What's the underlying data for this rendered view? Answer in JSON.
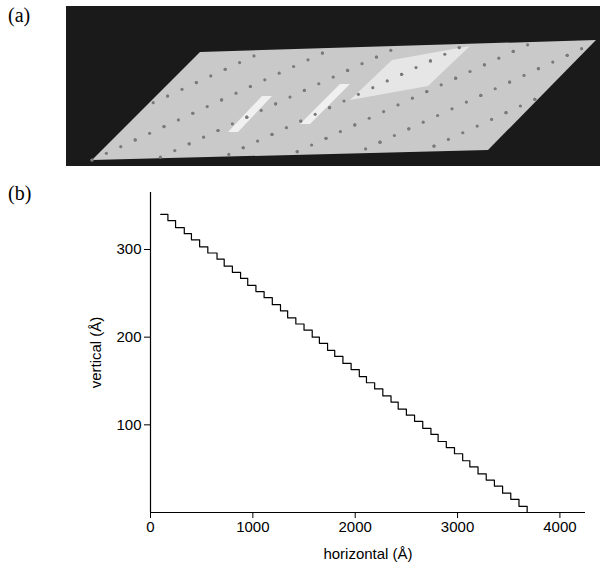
{
  "image_panel": {
    "label": "(a)"
  },
  "chart_data": {
    "type": "line",
    "panel_label": "(b)",
    "x_label": "horizontal (Å)",
    "y_label": "vertical (Å)",
    "x": [
      100,
      170,
      245,
      330,
      400,
      480,
      560,
      650,
      720,
      800,
      880,
      950,
      1030,
      1110,
      1190,
      1270,
      1340,
      1420,
      1500,
      1580,
      1650,
      1730,
      1800,
      1880,
      1960,
      2040,
      2110,
      2190,
      2270,
      2350,
      2420,
      2500,
      2580,
      2660,
      2740,
      2810,
      2890,
      2970,
      3050,
      3120,
      3200,
      3280,
      3360,
      3440,
      3520,
      3600,
      3680
    ],
    "values": [
      340,
      333,
      325,
      318,
      311,
      303,
      296,
      289,
      281,
      274,
      267,
      259,
      252,
      245,
      237,
      230,
      222,
      215,
      208,
      200,
      193,
      185,
      178,
      170,
      163,
      155,
      148,
      141,
      133,
      126,
      118,
      111,
      104,
      96,
      89,
      81,
      74,
      67,
      59,
      52,
      44,
      37,
      30,
      22,
      15,
      7,
      0
    ],
    "color": "#000000",
    "line_style": "step",
    "xlim": [
      0,
      4250
    ],
    "xticks": [
      0,
      1000,
      2000,
      3000,
      4000
    ],
    "ylim": [
      0,
      365
    ],
    "yticks": [
      100,
      200,
      300
    ],
    "grid": false
  }
}
